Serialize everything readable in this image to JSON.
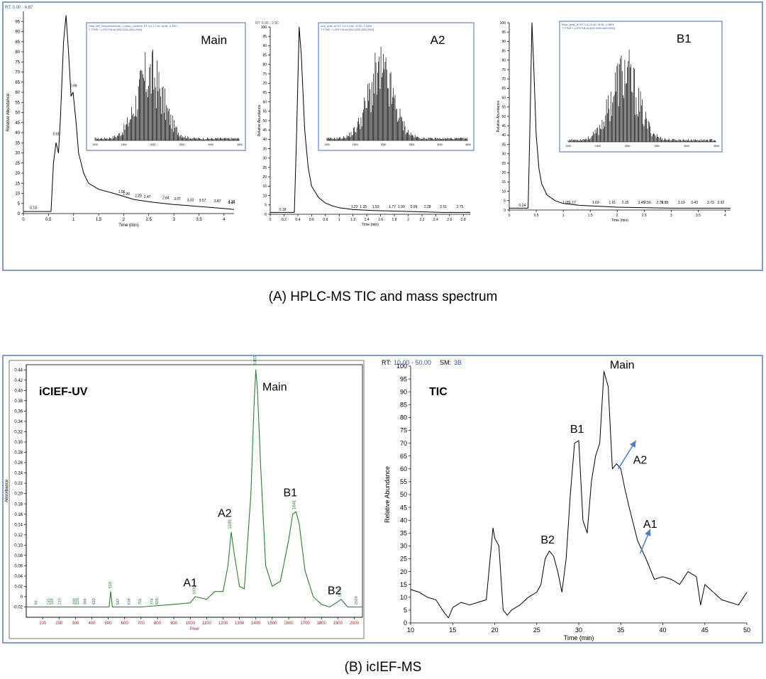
{
  "captions": {
    "a": "(A) HPLC-MS TIC and mass spectrum",
    "b": "(B) icIEF-MS"
  },
  "colors": {
    "frame": "#7f9fd3",
    "uv_trace": "#2e7d32",
    "uv_text": "#2e7d32",
    "axis_red": "#b22222",
    "arrow": "#4a7cc9",
    "trace": "#000000"
  },
  "chart_data": [
    {
      "id": "tic_main",
      "type": "line",
      "title": "RT: 0.00 - 4.67",
      "xlabel": "Time (min)",
      "ylabel": "Relative Abundance",
      "xlim": [
        0,
        4.2
      ],
      "ylim": [
        0,
        100
      ],
      "xticks": [
        0.0,
        0.5,
        1.0,
        1.5,
        2.0,
        2.5,
        3.0,
        3.5,
        4.0
      ],
      "yticks": [
        0,
        5,
        10,
        15,
        20,
        25,
        30,
        35,
        40,
        45,
        50,
        55,
        60,
        65,
        70,
        75,
        80,
        85,
        90,
        95
      ],
      "x": [
        0.0,
        0.3,
        0.55,
        0.6,
        0.65,
        0.7,
        0.74,
        0.8,
        0.85,
        0.9,
        0.95,
        0.99,
        1.05,
        1.1,
        1.2,
        1.3,
        1.5,
        1.8,
        2.2,
        2.6,
        3.0,
        3.5,
        4.0,
        4.2
      ],
      "y": [
        1,
        1,
        1,
        25,
        35,
        30,
        48,
        85,
        98,
        80,
        58,
        60,
        45,
        30,
        20,
        15,
        12,
        10,
        7,
        5.5,
        4.5,
        3.5,
        2.5,
        2
      ],
      "peak_labels": [
        "0.18",
        "0.65",
        "0.99",
        "1.96",
        "1.99",
        "2.29",
        "2.47",
        "2.84",
        "3.07",
        "3.33",
        "3.57",
        "3.87",
        "4.18",
        "4.49"
      ],
      "inset": {
        "label": "Main",
        "header_lines": [
          "Peak_info_Sequential/Mode_1_Mass_Combine_RT: 0.6-1.3 AV: 66 NL: 5.43E7",
          "T: FTMS + p ESI Full ms [500.0000-4500.0000]"
        ]
      }
    },
    {
      "id": "tic_a2",
      "type": "line",
      "title": "RT: 0.00 - 2.90",
      "xlabel": "Time (min)",
      "ylabel": "Relative Abundance",
      "xlim": [
        0,
        2.9
      ],
      "ylim": [
        0,
        100
      ],
      "xticks": [
        0.0,
        0.2,
        0.4,
        0.6,
        0.8,
        1.0,
        1.2,
        1.4,
        1.6,
        1.8,
        2.0,
        2.2,
        2.4,
        2.6,
        2.8
      ],
      "yticks": [
        0,
        5,
        10,
        15,
        20,
        25,
        30,
        35,
        40,
        45,
        50,
        55,
        60,
        65,
        70,
        75,
        80,
        85,
        90,
        95,
        100
      ],
      "x": [
        0.0,
        0.2,
        0.35,
        0.38,
        0.42,
        0.45,
        0.5,
        0.55,
        0.6,
        0.7,
        0.8,
        0.9,
        1.0,
        1.2,
        1.5,
        2.0,
        2.5,
        2.9
      ],
      "y": [
        1,
        1,
        1,
        40,
        100,
        85,
        45,
        25,
        15,
        9,
        6,
        4.5,
        3.5,
        2.5,
        2,
        1.5,
        1,
        1
      ],
      "peak_labels": [
        "0.18",
        "1.22",
        "1.35",
        "1.53",
        "1.77",
        "1.90",
        "2.08",
        "2.28",
        "2.51",
        "2.75"
      ],
      "inset": {
        "label": "A2",
        "header_lines": [
          "Acid_peak_A2 RT: 0.4-0.6 AV: 22 NL: 2.13E6",
          "T: FTMS + p ESI Full ms [500.0000-4500.0000]"
        ]
      }
    },
    {
      "id": "tic_b1",
      "type": "line",
      "title": "",
      "xlabel": "Time (min)",
      "ylabel": "Relative Abundance",
      "xlim": [
        0,
        4.1
      ],
      "ylim": [
        0,
        100
      ],
      "xticks": [
        0.0,
        0.5,
        1.0,
        1.5,
        2.0,
        2.5,
        3.0,
        3.5,
        4.0
      ],
      "yticks": [
        0,
        5,
        10,
        15,
        20,
        25,
        30,
        35,
        40,
        45,
        50,
        55,
        60,
        65,
        70,
        75,
        80,
        85,
        90,
        95,
        100
      ],
      "x": [
        0.0,
        0.24,
        0.35,
        0.38,
        0.42,
        0.45,
        0.5,
        0.55,
        0.6,
        0.7,
        0.85,
        1.0,
        1.3,
        2.0,
        3.0,
        4.1
      ],
      "y": [
        1,
        1,
        1,
        40,
        100,
        80,
        40,
        22,
        14,
        8,
        5,
        3.5,
        2.5,
        1.5,
        1,
        1
      ],
      "peak_labels": [
        "0.24",
        "1.05",
        "1.17",
        "1.60",
        "1.91",
        "2.15",
        "2.45",
        "2.56",
        "2.79",
        "2.88",
        "3.19",
        "3.43",
        "3.73",
        "3.92"
      ],
      "inset": {
        "label": "B1",
        "header_lines": [
          "Basic_peak_B1 RT: 0.4-0.5 AV: 18 NL: 1.96E6",
          "T: FTMS + p ESI Full ms [500.0000-4500.0000]"
        ]
      }
    },
    {
      "id": "icief_uv",
      "type": "line",
      "title": "iCIEF-UV",
      "xlabel": "Pixel",
      "ylabel": "Absorbance",
      "xlim": [
        0,
        2050
      ],
      "ylim": [
        -0.04,
        0.45
      ],
      "xticks": [
        100,
        200,
        300,
        400,
        500,
        600,
        700,
        800,
        900,
        1000,
        1100,
        1200,
        1300,
        1400,
        1500,
        1600,
        1700,
        1800,
        1900,
        2000
      ],
      "yticks": [
        -0.02,
        0,
        0.02,
        0.04,
        0.06,
        0.08,
        0.1,
        0.12,
        0.14,
        0.16,
        0.18,
        0.2,
        0.22,
        0.24,
        0.26,
        0.28,
        0.3,
        0.32,
        0.34,
        0.36,
        0.38,
        0.4,
        0.42,
        0.44
      ],
      "x": [
        0,
        100,
        300,
        505,
        515,
        525,
        700,
        900,
        1000,
        1030,
        1100,
        1150,
        1200,
        1230,
        1250,
        1270,
        1300,
        1330,
        1370,
        1390,
        1400,
        1410,
        1430,
        1460,
        1500,
        1550,
        1600,
        1625,
        1645,
        1665,
        1700,
        1750,
        1800,
        1850,
        1900,
        1920,
        1960,
        2000,
        2050
      ],
      "y": [
        -0.02,
        -0.02,
        -0.02,
        -0.02,
        0.01,
        -0.02,
        -0.02,
        -0.015,
        -0.012,
        0.0,
        -0.005,
        0.01,
        0.01,
        0.06,
        0.125,
        0.08,
        0.02,
        0.015,
        0.2,
        0.38,
        0.44,
        0.4,
        0.25,
        0.06,
        0.02,
        0.03,
        0.11,
        0.16,
        0.165,
        0.14,
        0.05,
        0.0,
        -0.015,
        -0.02,
        -0.01,
        -0.005,
        -0.02,
        -0.02,
        -0.02
      ],
      "peak_labels": [
        "66",
        "145",
        "165",
        "210",
        "300",
        "320",
        "366",
        "420",
        "518",
        "567",
        "634",
        "701",
        "774",
        "805",
        "1031",
        "1249",
        "1403",
        "1641",
        "1919",
        "2020"
      ],
      "annotations": [
        "Main",
        "A2",
        "B1",
        "A1",
        "B2"
      ]
    },
    {
      "id": "icief_tic",
      "type": "line",
      "title": "TIC",
      "header": {
        "rt_label": "RT:",
        "rt_range": "10.00 - 50.00",
        "sm_label": "SM:",
        "sm_value": "3B"
      },
      "xlabel": "Time (min)",
      "ylabel": "Relative Abundance",
      "xlim": [
        10,
        50
      ],
      "ylim": [
        0,
        100
      ],
      "xticks": [
        10,
        15,
        20,
        25,
        30,
        35,
        40,
        45,
        50
      ],
      "yticks": [
        0,
        5,
        10,
        15,
        20,
        25,
        30,
        35,
        40,
        45,
        50,
        55,
        60,
        65,
        70,
        75,
        80,
        85,
        90,
        95,
        100
      ],
      "x": [
        10,
        11,
        12,
        13,
        14,
        14.5,
        15,
        16,
        17,
        18,
        19,
        19.8,
        20,
        20.5,
        21,
        21.5,
        22,
        23,
        24,
        25,
        25.5,
        26,
        26.5,
        27,
        27.5,
        28,
        28.5,
        29,
        29.5,
        30,
        30.5,
        31,
        31.5,
        32,
        32.5,
        33,
        33.5,
        34,
        34.5,
        35,
        35.5,
        36,
        37,
        38,
        39,
        40,
        41,
        42,
        43,
        44,
        44.5,
        45,
        46,
        47,
        48,
        49,
        50
      ],
      "y": [
        13,
        12,
        10,
        9,
        4,
        2,
        6,
        8,
        7,
        8,
        9,
        37,
        33,
        30,
        5,
        3,
        5,
        7,
        10,
        12,
        15,
        25,
        28,
        26,
        20,
        12,
        25,
        50,
        70,
        71,
        40,
        35,
        55,
        65,
        70,
        98,
        92,
        60,
        62,
        60,
        52,
        45,
        32,
        25,
        17,
        18,
        17,
        15,
        20,
        18,
        7,
        15,
        12,
        9,
        8,
        7,
        12
      ],
      "annotations": [
        "Main",
        "B1",
        "A2",
        "B2",
        "A1"
      ]
    }
  ]
}
